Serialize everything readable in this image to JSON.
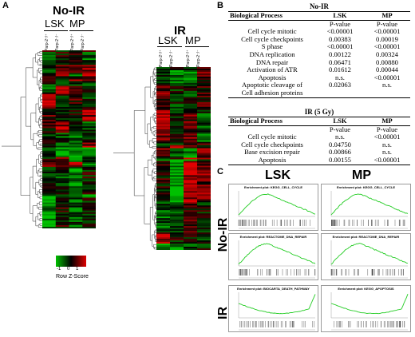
{
  "panels": {
    "a": "A",
    "b": "B",
    "c": "C"
  },
  "heatmap_noir": {
    "title": "No-IR",
    "group_left": "LSK",
    "group_right": "MP",
    "columns": [
      "Parp-2⁺/⁺",
      "Parp-2⁻/⁻",
      "Parp-2⁺/⁺",
      "Parp-2⁻/⁻"
    ]
  },
  "heatmap_ir": {
    "title": "IR",
    "group_left": "LSK",
    "group_right": "MP",
    "columns": [
      "Parp-2⁺/⁺",
      "Parp-2⁻/⁻",
      "Parp-2⁺/⁺",
      "Parp-2⁻/⁻"
    ]
  },
  "colorkey": {
    "ticks": [
      "-1",
      "0",
      "1"
    ],
    "label": "Row Z-Score",
    "low_color": "#00c000",
    "mid_color": "#000000",
    "high_color": "#e00000"
  },
  "table_noir": {
    "title": "No-IR",
    "headers": [
      "Biological Process",
      "LSK",
      "MP"
    ],
    "subheaders": [
      "",
      "P-value",
      "P-value"
    ],
    "rows": [
      [
        "Cell cycle mitotic",
        "<0.00001",
        "<0.00001"
      ],
      [
        "Cell cycle checkpoints",
        "0.00383",
        "0.00019"
      ],
      [
        "S phase",
        "<0.00001",
        "<0.00001"
      ],
      [
        "DNA replication",
        "0.00122",
        "0.00324"
      ],
      [
        "DNA repair",
        "0.06471",
        "0.00880"
      ],
      [
        "Activation of ATR",
        "0.01612",
        "0.00044"
      ],
      [
        "Apoptosis",
        "n.s.",
        "<0.00001"
      ],
      [
        "Apoptotic cleavage of",
        "0.02063",
        "n.s."
      ],
      [
        "Cell adhesion proteins",
        "",
        ""
      ]
    ]
  },
  "table_ir": {
    "title": "IR (5 Gy)",
    "headers": [
      "Biological Process",
      "LSK",
      "MP"
    ],
    "subheaders": [
      "",
      "P-value",
      "P-value"
    ],
    "rows": [
      [
        "Cell cycle mitotic",
        "n.s.",
        "<0.00001"
      ],
      [
        "Cell cycle checkpoints",
        "0.04750",
        "n.s."
      ],
      [
        "Base excision repair",
        "0.00866",
        "n.s."
      ],
      [
        "Apoptosis",
        "0.00155",
        "<0.00001"
      ]
    ]
  },
  "gsea": {
    "col_left": "LSK",
    "col_right": "MP",
    "row_labels": [
      "No-IR",
      "IR"
    ],
    "plots": [
      {
        "title": "Enrichment plot: KEGG_CELL_CYCLE",
        "shape": "peak_early"
      },
      {
        "title": "Enrichment plot: KEGG_CELL_CYCLE",
        "shape": "peak_early"
      },
      {
        "title": "Enrichment plot: REACTOME_DNA_REPAIR",
        "shape": "peak_early"
      },
      {
        "title": "Enrichment plot: REACTOME_DNA_REPAIR",
        "shape": "peak_early"
      },
      {
        "title": "Enrichment plot: BIOCARTA_DEATH_PATHWAY",
        "shape": "dip_late"
      },
      {
        "title": "Enrichment plot: KEGG_APOPTOSIS",
        "shape": "dip_late"
      }
    ],
    "line_color": "#22cc22"
  }
}
